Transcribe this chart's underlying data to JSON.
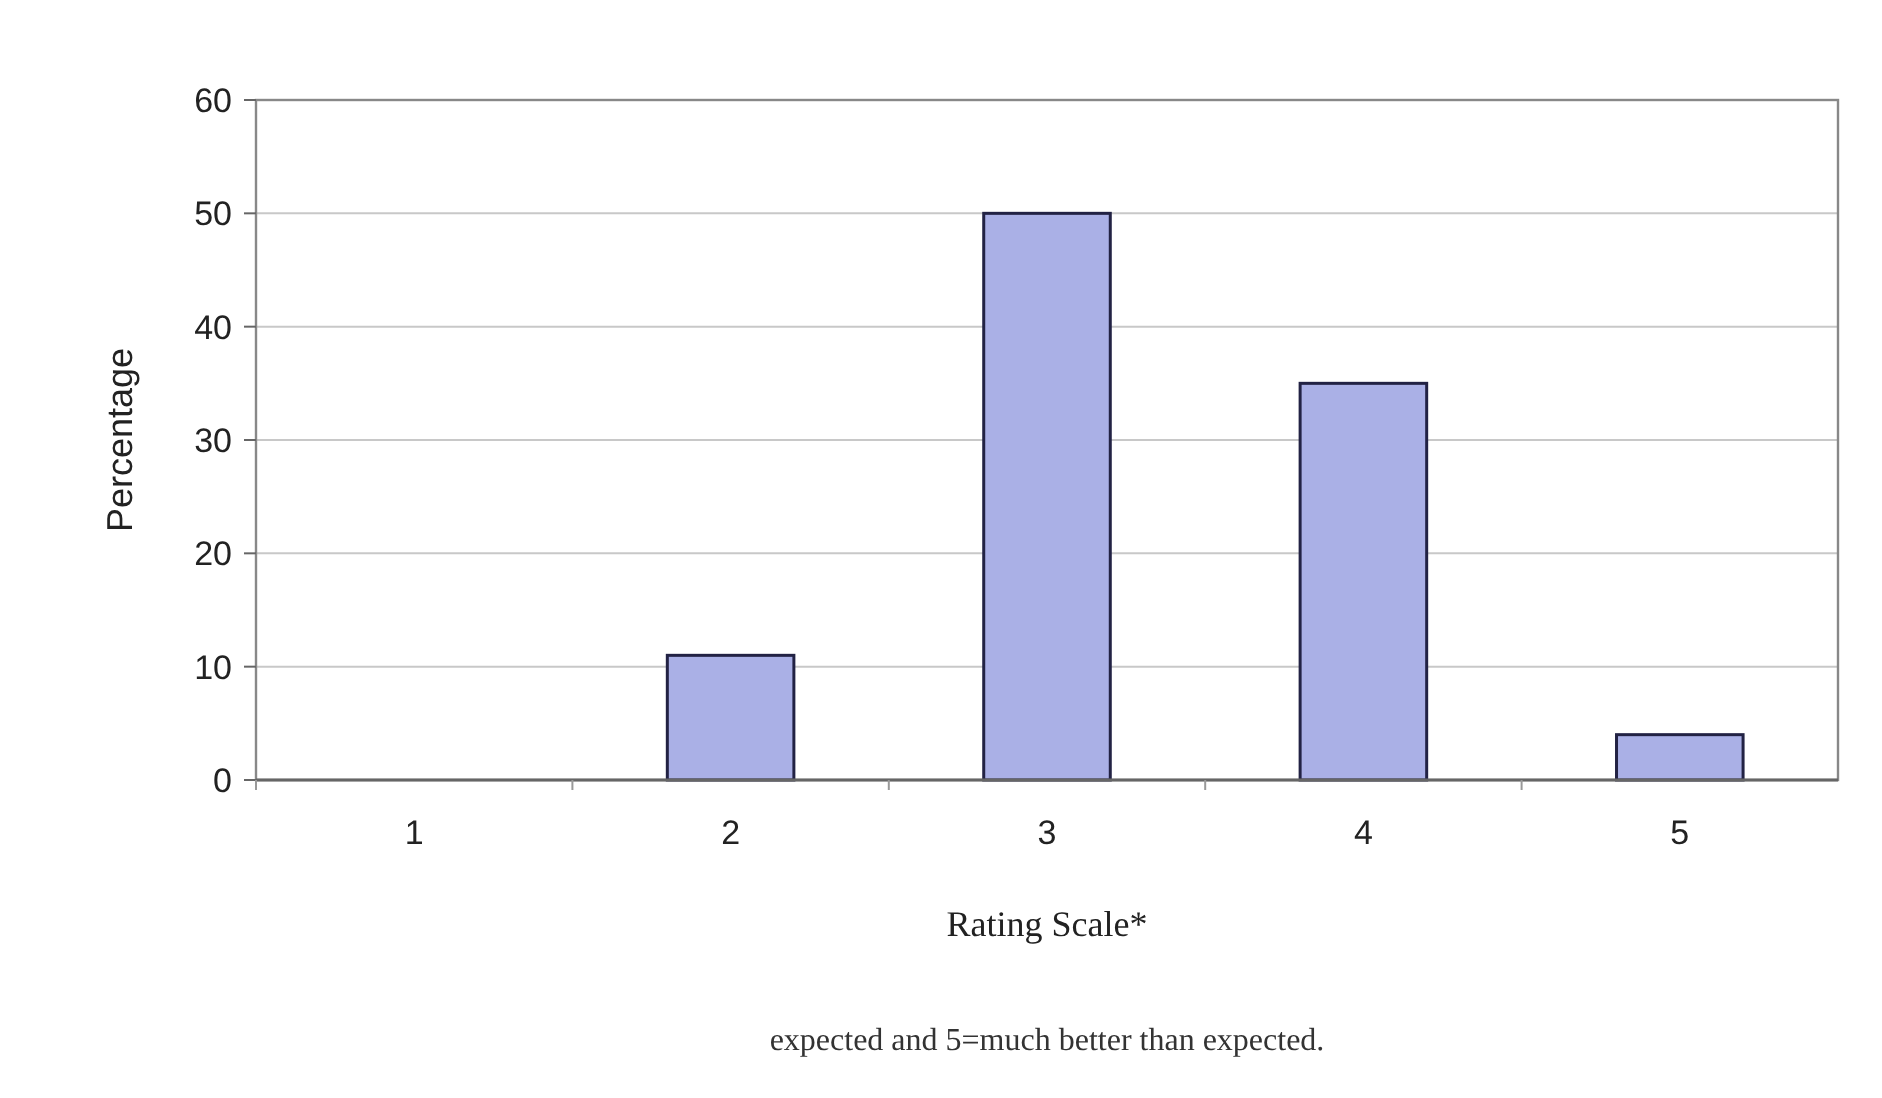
{
  "chart_data": {
    "type": "bar",
    "xlabel": "Rating Scale*",
    "ylabel": "Percentage",
    "categories": [
      "1",
      "2",
      "3",
      "4",
      "5"
    ],
    "values": [
      0,
      11,
      50,
      35,
      4
    ],
    "color": "#aab0e6",
    "ylim": [
      0,
      60
    ],
    "yticks": [
      0,
      10,
      20,
      30,
      40,
      50,
      60
    ],
    "grid": "y",
    "annotations": [
      "expected and 5=much better than expected."
    ]
  }
}
